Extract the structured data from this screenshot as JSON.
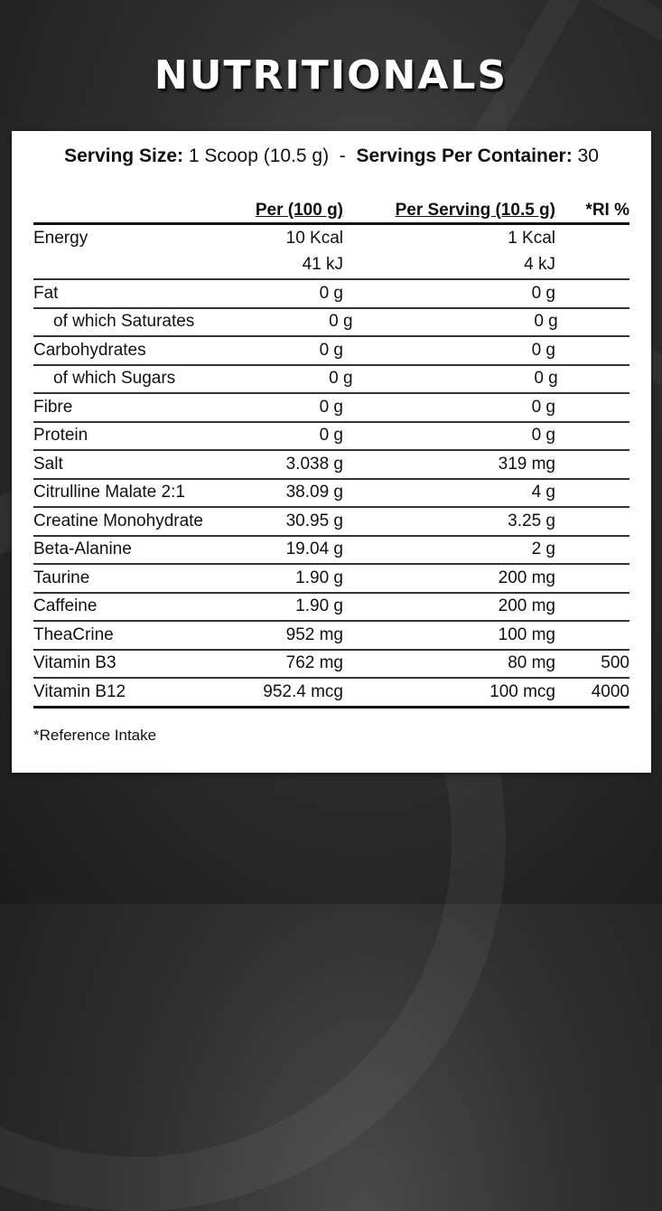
{
  "title": "NUTRITIONALS",
  "serving": {
    "size_label": "Serving Size:",
    "size_value": "1 Scoop (10.5 g)",
    "separator": "-",
    "per_container_label": "Servings Per Container:",
    "per_container_value": "30"
  },
  "table": {
    "headers": {
      "name": "",
      "per100": "Per (100 g)",
      "per_serving": "Per Serving (10.5 g)",
      "ri": "*RI %"
    },
    "rows": [
      {
        "name": "Energy",
        "per100": "10 Kcal",
        "per_serving": "1 Kcal",
        "ri": "",
        "indent": false
      },
      {
        "name": "",
        "per100": "41 kJ",
        "per_serving": "4 kJ",
        "ri": "",
        "indent": false
      },
      {
        "name": "Fat",
        "per100": "0 g",
        "per_serving": "0 g",
        "ri": "",
        "indent": false
      },
      {
        "name": "of which Saturates",
        "per100": "0 g",
        "per_serving": "0 g",
        "ri": "",
        "indent": true
      },
      {
        "name": "Carbohydrates",
        "per100": "0 g",
        "per_serving": "0 g",
        "ri": "",
        "indent": false
      },
      {
        "name": "of which Sugars",
        "per100": "0 g",
        "per_serving": "0 g",
        "ri": "",
        "indent": true
      },
      {
        "name": "Fibre",
        "per100": "0 g",
        "per_serving": "0 g",
        "ri": "",
        "indent": false
      },
      {
        "name": "Protein",
        "per100": "0 g",
        "per_serving": "0 g",
        "ri": "",
        "indent": false
      },
      {
        "name": "Salt",
        "per100": "3.038 g",
        "per_serving": "319 mg",
        "ri": "",
        "indent": false
      },
      {
        "name": "Citrulline Malate 2:1",
        "per100": "38.09 g",
        "per_serving": "4 g",
        "ri": "",
        "indent": false
      },
      {
        "name": "Creatine Monohydrate",
        "per100": "30.95 g",
        "per_serving": "3.25 g",
        "ri": "",
        "indent": false
      },
      {
        "name": "Beta-Alanine",
        "per100": "19.04 g",
        "per_serving": "2 g",
        "ri": "",
        "indent": false
      },
      {
        "name": "Taurine",
        "per100": "1.90 g",
        "per_serving": "200 mg",
        "ri": "",
        "indent": false
      },
      {
        "name": "Caffeine",
        "per100": "1.90 g",
        "per_serving": "200 mg",
        "ri": "",
        "indent": false
      },
      {
        "name": "TheaCrine",
        "per100": "952 mg",
        "per_serving": "100 mg",
        "ri": "",
        "indent": false
      },
      {
        "name": "Vitamin B3",
        "per100": "762 mg",
        "per_serving": "80 mg",
        "ri": "500",
        "indent": false
      },
      {
        "name": "Vitamin B12",
        "per100": "952.4 mcg",
        "per_serving": "100 mcg",
        "ri": "4000",
        "indent": false
      }
    ]
  },
  "footnote": "*Reference Intake"
}
